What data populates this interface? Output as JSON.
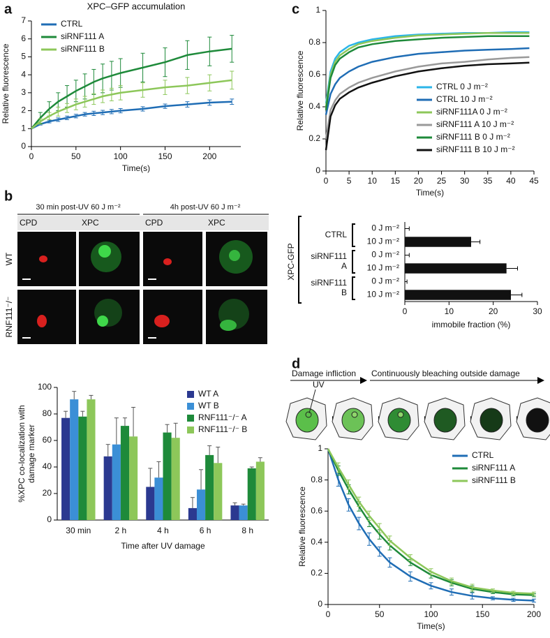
{
  "panel_labels": [
    "a",
    "b",
    "c",
    "d"
  ],
  "micrographs": {
    "headers": [
      "30 min post-UV 60 J m⁻²",
      "4h post-UV 60 J m⁻²"
    ],
    "columns": [
      "CPD",
      "XPC",
      "CPD",
      "XPC"
    ],
    "rows": [
      "WT",
      "RNF111⁻/⁻"
    ]
  },
  "diagram": {
    "steps": [
      "Damage infliction",
      "Continuously bleaching outside damage"
    ],
    "stimulus": "UV"
  },
  "chart_data": [
    {
      "type": "line",
      "title": "XPC–GFP accumulation",
      "xlabel": "Time(s)",
      "ylabel": "Relative fluorescence",
      "x": [
        0,
        10,
        20,
        30,
        40,
        50,
        60,
        70,
        80,
        90,
        100,
        125,
        150,
        175,
        200,
        225
      ],
      "xlim": [
        0,
        235
      ],
      "xticks": [
        0,
        50,
        100,
        150,
        200
      ],
      "ylim": [
        0,
        7
      ],
      "yticks": [
        0,
        1,
        2,
        3,
        4,
        5,
        6,
        7
      ],
      "legend": "upper left",
      "series": [
        {
          "name": "CTRL",
          "color": "#1f6db5",
          "values": [
            1,
            1.25,
            1.4,
            1.5,
            1.6,
            1.7,
            1.8,
            1.85,
            1.9,
            1.95,
            2.0,
            2.1,
            2.25,
            2.35,
            2.45,
            2.5
          ],
          "errors": [
            0,
            0.05,
            0.08,
            0.1,
            0.1,
            0.1,
            0.1,
            0.12,
            0.12,
            0.12,
            0.12,
            0.12,
            0.12,
            0.15,
            0.15,
            0.15
          ]
        },
        {
          "name": "siRNF111 A",
          "color": "#1e8a3a",
          "values": [
            1,
            1.6,
            2.1,
            2.5,
            2.8,
            3.1,
            3.35,
            3.6,
            3.8,
            3.95,
            4.1,
            4.4,
            4.7,
            5.1,
            5.3,
            5.45
          ],
          "errors": [
            0,
            0.3,
            0.4,
            0.5,
            0.6,
            0.6,
            0.7,
            0.7,
            0.8,
            0.8,
            0.8,
            0.8,
            0.8,
            0.8,
            0.8,
            0.75
          ]
        },
        {
          "name": "siRNF111 B",
          "color": "#8dc75a",
          "values": [
            1,
            1.4,
            1.7,
            1.95,
            2.15,
            2.35,
            2.5,
            2.65,
            2.8,
            2.9,
            3.0,
            3.15,
            3.3,
            3.4,
            3.55,
            3.7
          ],
          "errors": [
            0,
            0.15,
            0.2,
            0.25,
            0.25,
            0.3,
            0.3,
            0.3,
            0.35,
            0.35,
            0.4,
            0.4,
            0.4,
            0.45,
            0.45,
            0.5
          ]
        }
      ]
    },
    {
      "type": "bar",
      "orientation": "vertical",
      "xlabel": "Time after UV damage",
      "ylabel": [
        "%XPC co-localization with",
        "damage marker"
      ],
      "categories": [
        "30 min",
        "2 h",
        "4 h",
        "6 h",
        "8 h"
      ],
      "ylim": [
        0,
        100
      ],
      "yticks": [
        0,
        20,
        40,
        60,
        80,
        100
      ],
      "legend": "upper right",
      "series": [
        {
          "name": "WT A",
          "color": "#2b3990",
          "values": [
            77,
            48,
            25,
            9,
            11
          ],
          "errors": [
            5,
            9,
            14,
            8,
            2
          ]
        },
        {
          "name": "WT B",
          "color": "#3b8fd6",
          "values": [
            91,
            57,
            32,
            23,
            11
          ],
          "errors": [
            6,
            20,
            12,
            15,
            1
          ]
        },
        {
          "name": "RNF111⁻/⁻ A",
          "color": "#1e8a3a",
          "values": [
            78,
            71,
            66,
            49,
            39
          ],
          "errors": [
            4,
            6,
            6,
            7,
            1
          ]
        },
        {
          "name": "RNF111⁻/⁻ B",
          "color": "#8dc75a",
          "values": [
            91,
            63,
            62,
            43,
            44
          ],
          "errors": [
            3,
            22,
            11,
            12,
            3
          ]
        }
      ]
    },
    {
      "type": "line",
      "xlabel": "Time(s)",
      "ylabel": "Relative fluorescence",
      "x": [
        0,
        1,
        2,
        3,
        5,
        7,
        10,
        15,
        20,
        25,
        30,
        35,
        40,
        44
      ],
      "xlim": [
        0,
        45
      ],
      "xticks": [
        0,
        5,
        10,
        15,
        20,
        25,
        30,
        35,
        40,
        45
      ],
      "ylim": [
        0,
        1
      ],
      "yticks": [
        0,
        0.2,
        0.4,
        0.6,
        0.8,
        1
      ],
      "legend": "center right",
      "series": [
        {
          "name": "CTRL 0 J m⁻²",
          "color": "#2bb5e8",
          "values": [
            0.42,
            0.62,
            0.7,
            0.74,
            0.78,
            0.8,
            0.82,
            0.84,
            0.85,
            0.855,
            0.86,
            0.86,
            0.865,
            0.865
          ]
        },
        {
          "name": "CTRL 10 J m⁻²",
          "color": "#1f6db5",
          "values": [
            0.35,
            0.48,
            0.54,
            0.58,
            0.62,
            0.65,
            0.68,
            0.71,
            0.73,
            0.74,
            0.75,
            0.755,
            0.76,
            0.765
          ]
        },
        {
          "name": "siRNF111A 0 J m⁻²",
          "color": "#8dc75a",
          "values": [
            0.4,
            0.6,
            0.68,
            0.72,
            0.76,
            0.79,
            0.81,
            0.83,
            0.845,
            0.85,
            0.855,
            0.86,
            0.86,
            0.86
          ]
        },
        {
          "name": "siRNF111 A 10 J m⁻²",
          "color": "#999999",
          "values": [
            0.2,
            0.38,
            0.44,
            0.48,
            0.52,
            0.55,
            0.58,
            0.62,
            0.65,
            0.67,
            0.68,
            0.695,
            0.705,
            0.71
          ]
        },
        {
          "name": "siRNF111 B 0 J m⁻²",
          "color": "#1e8a3a",
          "values": [
            0.38,
            0.58,
            0.66,
            0.7,
            0.74,
            0.77,
            0.79,
            0.81,
            0.82,
            0.83,
            0.835,
            0.84,
            0.84,
            0.84
          ]
        },
        {
          "name": "siRNF111 B 10 J m⁻²",
          "color": "#111111",
          "values": [
            0.13,
            0.34,
            0.41,
            0.45,
            0.49,
            0.52,
            0.55,
            0.59,
            0.62,
            0.64,
            0.655,
            0.665,
            0.67,
            0.675
          ]
        }
      ]
    },
    {
      "type": "bar",
      "orientation": "horizontal",
      "xlabel": "immobile fraction (%)",
      "group_label": "XPC-GFP",
      "groups": [
        [
          "CTRL"
        ],
        [
          "siRNF111",
          "A"
        ],
        [
          "siRNF111",
          "B"
        ]
      ],
      "categories": [
        "0 J m⁻²",
        "10 J m⁻²",
        "0 J m⁻²",
        "10 J m⁻²",
        "0 J m⁻²",
        "10 J m⁻²"
      ],
      "values": [
        0,
        15,
        0,
        23,
        0,
        24
      ],
      "errors": [
        1,
        2,
        1,
        2.5,
        0.5,
        2.5
      ],
      "color": "#111111",
      "xlim": [
        0,
        30
      ],
      "xticks": [
        0,
        10,
        20,
        30
      ]
    },
    {
      "type": "line",
      "xlabel": "Time(s)",
      "ylabel": "Relative fluorescence",
      "x": [
        0,
        10,
        20,
        30,
        40,
        50,
        60,
        80,
        100,
        120,
        140,
        160,
        180,
        200
      ],
      "xlim": [
        0,
        200
      ],
      "xticks": [
        0,
        50,
        100,
        150,
        200
      ],
      "ylim": [
        0,
        1
      ],
      "yticks": [
        0,
        0.2,
        0.4,
        0.6,
        0.8,
        1
      ],
      "legend": "upper right",
      "series": [
        {
          "name": "CTRL",
          "color": "#1f6db5",
          "values": [
            1,
            0.8,
            0.64,
            0.52,
            0.42,
            0.34,
            0.27,
            0.18,
            0.12,
            0.08,
            0.055,
            0.04,
            0.03,
            0.025
          ],
          "errors": [
            0,
            0.04,
            0.04,
            0.04,
            0.04,
            0.03,
            0.03,
            0.03,
            0.02,
            0.02,
            0.02,
            0.01,
            0.01,
            0.01
          ]
        },
        {
          "name": "siRNF111 A",
          "color": "#1e8a3a",
          "values": [
            1,
            0.86,
            0.74,
            0.63,
            0.53,
            0.45,
            0.38,
            0.27,
            0.19,
            0.14,
            0.1,
            0.08,
            0.065,
            0.06
          ],
          "errors": [
            0,
            0.03,
            0.03,
            0.03,
            0.03,
            0.03,
            0.03,
            0.02,
            0.02,
            0.02,
            0.02,
            0.01,
            0.01,
            0.01
          ]
        },
        {
          "name": "siRNF111 B",
          "color": "#8dc75a",
          "values": [
            1,
            0.88,
            0.77,
            0.66,
            0.57,
            0.49,
            0.41,
            0.3,
            0.21,
            0.15,
            0.11,
            0.09,
            0.075,
            0.07
          ],
          "errors": [
            0,
            0.03,
            0.03,
            0.03,
            0.03,
            0.03,
            0.03,
            0.02,
            0.02,
            0.02,
            0.02,
            0.01,
            0.01,
            0.01
          ]
        }
      ]
    }
  ]
}
